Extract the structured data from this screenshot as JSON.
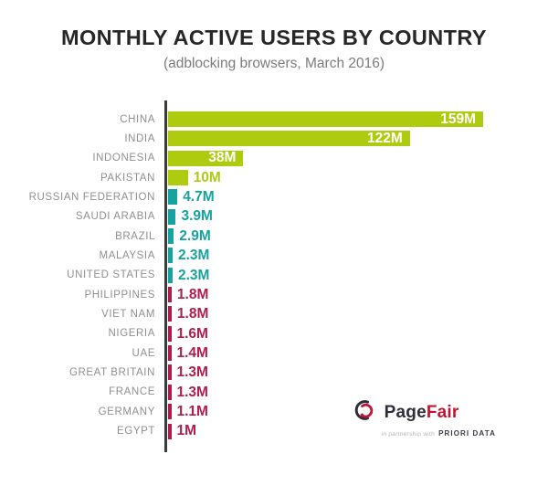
{
  "header": {
    "title": "MONTHLY ACTIVE USERS BY COUNTRY",
    "subtitle": "(adblocking browsers, March 2016)"
  },
  "chart_data": {
    "type": "bar",
    "orientation": "horizontal",
    "title": "MONTHLY ACTIVE USERS BY COUNTRY",
    "subtitle": "(adblocking browsers, March 2016)",
    "unit": "millions of monthly active users",
    "categories": [
      "CHINA",
      "INDIA",
      "INDONESIA",
      "PAKISTAN",
      "RUSSIAN FEDERATION",
      "SAUDI ARABIA",
      "BRAZIL",
      "MALAYSIA",
      "UNITED STATES",
      "PHILIPPINES",
      "VIET NAM",
      "NIGERIA",
      "UAE",
      "GREAT BRITAIN",
      "FRANCE",
      "GERMANY",
      "EGYPT"
    ],
    "values": [
      159,
      122,
      38,
      10,
      4.7,
      3.9,
      2.9,
      2.3,
      2.3,
      1.8,
      1.8,
      1.6,
      1.4,
      1.3,
      1.3,
      1.1,
      1
    ],
    "value_labels": [
      "159M",
      "122M",
      "38M",
      "10M",
      "4.7M",
      "3.9M",
      "2.9M",
      "2.3M",
      "2.3M",
      "1.8M",
      "1.8M",
      "1.6M",
      "1.4M",
      "1.3M",
      "1.3M",
      "1.1M",
      "1M"
    ],
    "bar_colors": [
      "#aecb10",
      "#aecb10",
      "#aecb10",
      "#aecb10",
      "#14a3a1",
      "#14a3a1",
      "#14a3a1",
      "#14a3a1",
      "#14a3a1",
      "#ae1e4c",
      "#ae1e4c",
      "#ae1e4c",
      "#ae1e4c",
      "#ae1e4c",
      "#ae1e4c",
      "#ae1e4c",
      "#ae1e4c"
    ],
    "palette": {
      "green": "#aecb10",
      "teal": "#14a3a1",
      "crimson": "#ae1e4c"
    },
    "xlim": [
      0,
      165
    ],
    "grid": false,
    "legend": false,
    "axis_line_color": "#3a3a3a",
    "category_label_color": "#8f8f8f",
    "value_label_style": "inside-white-when-bar-fits-otherwise-outside-bar-colored"
  },
  "branding": {
    "logo_page": "Page",
    "logo_fair": "Fair",
    "partnership_prefix": "in partnership with",
    "partner_name": "PRIORI DATA",
    "logo_dark": "#2e2d3b",
    "logo_red": "#c21432"
  }
}
